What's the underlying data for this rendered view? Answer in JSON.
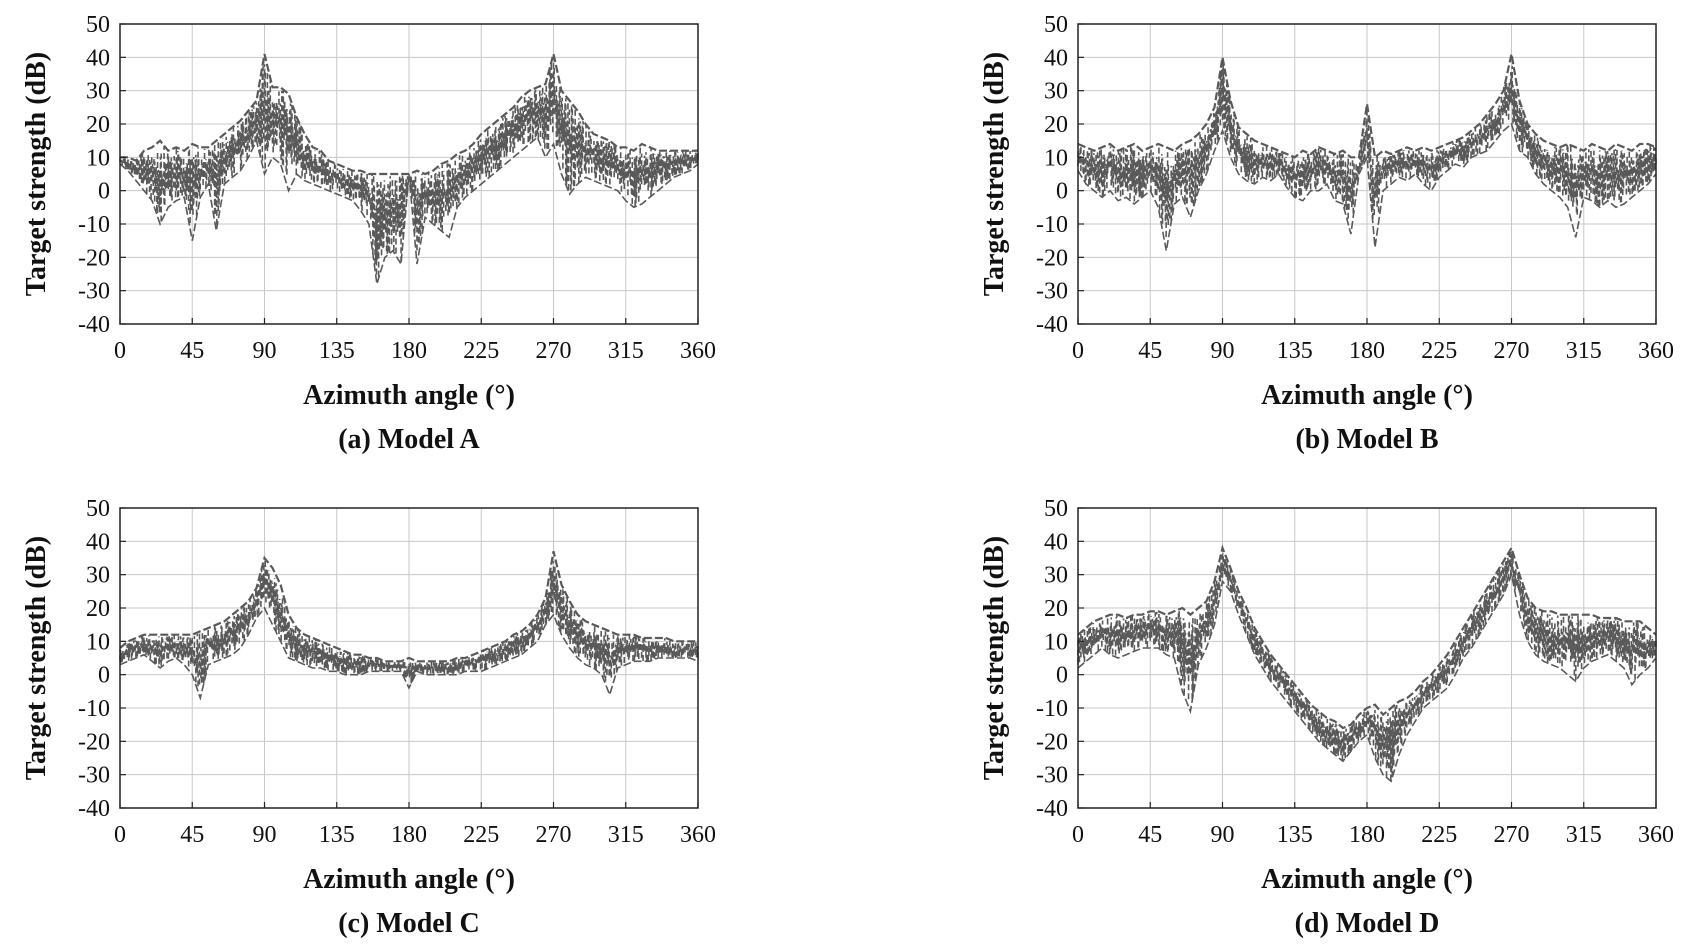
{
  "figure": {
    "colors": {
      "series": "#595959",
      "grid": "#c8c8c8",
      "axis": "#222222",
      "background": "#ffffff"
    }
  },
  "chart_data": [
    {
      "type": "line",
      "caption": "(a) Model A",
      "xlabel": "Azimuth angle (°)",
      "ylabel": "Target strength (dB)",
      "xlim": [
        0,
        360
      ],
      "ylim": [
        -40,
        50
      ],
      "xticks": [
        "0",
        "45",
        "90",
        "135",
        "180",
        "225",
        "270",
        "315",
        "360"
      ],
      "yticks": [
        "50",
        "40",
        "30",
        "20",
        "10",
        "0",
        "-10",
        "-20",
        "-30",
        "-40"
      ],
      "grid": true,
      "line_style": "dashed",
      "series": [
        {
          "values_note": "",
          "x": [
            0,
            5,
            10,
            15,
            20,
            25,
            30,
            35,
            40,
            45,
            50,
            55,
            60,
            65,
            70,
            75,
            80,
            85,
            90,
            95,
            100,
            105,
            110,
            115,
            120,
            125,
            130,
            135,
            140,
            145,
            150,
            155,
            160,
            165,
            170,
            175,
            180,
            185,
            190,
            195,
            200,
            205,
            210,
            215,
            220,
            225,
            230,
            235,
            240,
            245,
            250,
            255,
            260,
            265,
            270,
            275,
            280,
            285,
            290,
            295,
            300,
            305,
            310,
            315,
            320,
            325,
            330,
            335,
            340,
            345,
            350,
            355,
            360
          ],
          "upper": [
            10,
            10,
            9,
            12,
            13,
            15,
            12,
            13,
            12,
            14,
            13,
            13,
            15,
            17,
            19,
            21,
            24,
            27,
            41,
            31,
            31,
            29,
            22,
            17,
            13,
            12,
            9,
            8,
            7,
            6,
            6,
            5,
            5,
            5,
            5,
            5,
            5,
            6,
            5,
            6,
            8,
            9,
            11,
            12,
            14,
            17,
            19,
            21,
            23,
            25,
            28,
            30,
            31,
            32,
            41,
            30,
            27,
            24,
            20,
            17,
            16,
            15,
            13,
            13,
            12,
            14,
            13,
            12,
            12,
            12,
            12,
            12,
            12
          ],
          "lower": [
            8,
            6,
            3,
            0,
            -3,
            -10,
            -5,
            -3,
            -2,
            -15,
            -2,
            2,
            -12,
            2,
            4,
            6,
            10,
            15,
            5,
            10,
            8,
            0,
            5,
            3,
            2,
            1,
            0,
            -1,
            -2,
            -3,
            -6,
            -10,
            -28,
            -20,
            -18,
            -22,
            5,
            -22,
            -8,
            -10,
            -12,
            -14,
            -5,
            -2,
            0,
            2,
            4,
            6,
            8,
            10,
            12,
            14,
            16,
            10,
            14,
            5,
            -1,
            2,
            4,
            3,
            2,
            1,
            0,
            -3,
            -5,
            -4,
            -2,
            0,
            2,
            4,
            5,
            6,
            8
          ]
        }
      ]
    },
    {
      "type": "line",
      "caption": "(b) Model B",
      "xlabel": "Azimuth angle (°)",
      "ylabel": "Target strength (dB)",
      "xlim": [
        0,
        360
      ],
      "ylim": [
        -40,
        50
      ],
      "xticks": [
        "0",
        "45",
        "90",
        "135",
        "180",
        "225",
        "270",
        "315",
        "360"
      ],
      "yticks": [
        "50",
        "40",
        "30",
        "20",
        "10",
        "0",
        "-10",
        "-20",
        "-30",
        "-40"
      ],
      "grid": true,
      "line_style": "dashed",
      "series": [
        {
          "x": [
            0,
            5,
            10,
            15,
            20,
            25,
            30,
            35,
            40,
            45,
            50,
            55,
            60,
            65,
            70,
            75,
            80,
            85,
            90,
            95,
            100,
            105,
            110,
            115,
            120,
            125,
            130,
            135,
            140,
            145,
            150,
            155,
            160,
            165,
            170,
            175,
            180,
            185,
            190,
            195,
            200,
            205,
            210,
            215,
            220,
            225,
            230,
            235,
            240,
            245,
            250,
            255,
            260,
            265,
            270,
            275,
            280,
            285,
            290,
            295,
            300,
            305,
            310,
            315,
            320,
            325,
            330,
            335,
            340,
            345,
            350,
            355,
            360
          ],
          "upper": [
            14,
            13,
            12,
            13,
            14,
            12,
            13,
            14,
            12,
            13,
            14,
            13,
            12,
            14,
            15,
            17,
            20,
            25,
            40,
            27,
            19,
            17,
            15,
            14,
            13,
            12,
            11,
            10,
            12,
            11,
            13,
            12,
            11,
            12,
            10,
            10,
            26,
            10,
            12,
            11,
            12,
            13,
            12,
            13,
            12,
            13,
            14,
            15,
            16,
            18,
            20,
            23,
            26,
            30,
            41,
            27,
            20,
            17,
            15,
            14,
            13,
            14,
            13,
            12,
            14,
            13,
            12,
            14,
            13,
            12,
            14,
            14,
            13
          ],
          "lower": [
            6,
            2,
            0,
            -2,
            0,
            -3,
            -2,
            -4,
            -2,
            0,
            -5,
            -18,
            -4,
            -2,
            -8,
            0,
            5,
            12,
            18,
            10,
            5,
            3,
            2,
            4,
            3,
            5,
            1,
            -2,
            -3,
            0,
            0,
            2,
            -3,
            -4,
            -13,
            5,
            10,
            -17,
            0,
            2,
            4,
            3,
            5,
            2,
            0,
            4,
            6,
            8,
            7,
            10,
            11,
            12,
            15,
            18,
            20,
            12,
            10,
            5,
            2,
            0,
            -2,
            -5,
            -14,
            -2,
            -3,
            -5,
            -3,
            -5,
            -4,
            -2,
            0,
            2,
            5
          ]
        }
      ]
    },
    {
      "type": "line",
      "caption": "(c) Model C",
      "xlabel": "Azimuth angle (°)",
      "ylabel": "Target strength (dB)",
      "xlim": [
        0,
        360
      ],
      "ylim": [
        -40,
        50
      ],
      "xticks": [
        "0",
        "45",
        "90",
        "135",
        "180",
        "225",
        "270",
        "315",
        "360"
      ],
      "yticks": [
        "50",
        "40",
        "30",
        "20",
        "10",
        "0",
        "-10",
        "-20",
        "-30",
        "-40"
      ],
      "grid": true,
      "line_style": "dashed",
      "series": [
        {
          "x": [
            0,
            5,
            10,
            15,
            20,
            25,
            30,
            35,
            40,
            45,
            50,
            55,
            60,
            65,
            70,
            75,
            80,
            85,
            90,
            95,
            100,
            105,
            110,
            115,
            120,
            125,
            130,
            135,
            140,
            145,
            150,
            155,
            160,
            165,
            170,
            175,
            180,
            185,
            190,
            195,
            200,
            205,
            210,
            215,
            220,
            225,
            230,
            235,
            240,
            245,
            250,
            255,
            260,
            265,
            270,
            275,
            280,
            285,
            290,
            295,
            300,
            305,
            310,
            315,
            320,
            325,
            330,
            335,
            340,
            345,
            350,
            355,
            360
          ],
          "upper": [
            8,
            10,
            11,
            12,
            12,
            12,
            12,
            12,
            12,
            12,
            13,
            14,
            15,
            16,
            18,
            20,
            22,
            26,
            35,
            32,
            27,
            18,
            14,
            12,
            11,
            10,
            9,
            8,
            7,
            6,
            6,
            5,
            5,
            4,
            4,
            4,
            5,
            4,
            4,
            4,
            4,
            4,
            5,
            5,
            6,
            7,
            8,
            9,
            10,
            12,
            13,
            15,
            18,
            23,
            37,
            27,
            22,
            18,
            16,
            15,
            14,
            13,
            12,
            12,
            12,
            11,
            11,
            11,
            11,
            10,
            10,
            10,
            10
          ],
          "lower": [
            3,
            4,
            5,
            6,
            4,
            2,
            4,
            5,
            3,
            0,
            -7,
            3,
            4,
            5,
            6,
            8,
            12,
            17,
            20,
            15,
            10,
            5,
            4,
            3,
            2,
            2,
            1,
            1,
            0,
            0,
            0,
            1,
            1,
            1,
            1,
            1,
            -4,
            1,
            0,
            0,
            0,
            0,
            0,
            1,
            1,
            1,
            2,
            3,
            4,
            5,
            6,
            8,
            10,
            15,
            18,
            12,
            8,
            5,
            3,
            2,
            0,
            -6,
            2,
            3,
            4,
            4,
            4,
            5,
            5,
            5,
            5,
            5,
            4
          ]
        }
      ]
    },
    {
      "type": "line",
      "caption": "(d) Model D",
      "xlabel": "Azimuth angle (°)",
      "ylabel": "Target strength (dB)",
      "xlim": [
        0,
        360
      ],
      "ylim": [
        -40,
        50
      ],
      "xticks": [
        "0",
        "45",
        "90",
        "135",
        "180",
        "225",
        "270",
        "315",
        "360"
      ],
      "yticks": [
        "50",
        "40",
        "30",
        "20",
        "10",
        "0",
        "-10",
        "-20",
        "-30",
        "-40"
      ],
      "grid": true,
      "line_style": "dashed",
      "series": [
        {
          "x": [
            0,
            5,
            10,
            15,
            20,
            25,
            30,
            35,
            40,
            45,
            50,
            55,
            60,
            65,
            70,
            75,
            80,
            85,
            90,
            95,
            100,
            105,
            110,
            115,
            120,
            125,
            130,
            135,
            140,
            145,
            150,
            155,
            160,
            165,
            170,
            175,
            180,
            185,
            190,
            195,
            200,
            205,
            210,
            215,
            220,
            225,
            230,
            235,
            240,
            245,
            250,
            255,
            260,
            265,
            270,
            275,
            280,
            285,
            290,
            295,
            300,
            305,
            310,
            315,
            320,
            325,
            330,
            335,
            340,
            345,
            350,
            355,
            360
          ],
          "upper": [
            12,
            14,
            16,
            17,
            18,
            18,
            17,
            18,
            18,
            19,
            19,
            18,
            19,
            20,
            18,
            20,
            22,
            28,
            38,
            32,
            25,
            20,
            14,
            10,
            6,
            3,
            0,
            -3,
            -6,
            -9,
            -11,
            -13,
            -14,
            -16,
            -15,
            -12,
            -10,
            -9,
            -12,
            -10,
            -8,
            -7,
            -5,
            -2,
            0,
            3,
            6,
            10,
            14,
            18,
            22,
            26,
            30,
            34,
            38,
            30,
            23,
            20,
            19,
            19,
            18,
            18,
            18,
            18,
            18,
            17,
            17,
            17,
            16,
            16,
            16,
            14,
            12
          ],
          "lower": [
            2,
            4,
            6,
            8,
            6,
            5,
            6,
            7,
            8,
            8,
            8,
            6,
            5,
            -5,
            -11,
            3,
            8,
            15,
            28,
            25,
            18,
            12,
            6,
            2,
            -2,
            -5,
            -8,
            -11,
            -14,
            -17,
            -20,
            -22,
            -24,
            -26,
            -23,
            -20,
            -18,
            -25,
            -30,
            -32,
            -24,
            -18,
            -14,
            -10,
            -8,
            -6,
            -4,
            0,
            5,
            8,
            12,
            16,
            20,
            24,
            30,
            18,
            10,
            6,
            4,
            3,
            2,
            0,
            -2,
            2,
            4,
            5,
            6,
            4,
            2,
            -3,
            0,
            2,
            5
          ]
        }
      ]
    }
  ]
}
